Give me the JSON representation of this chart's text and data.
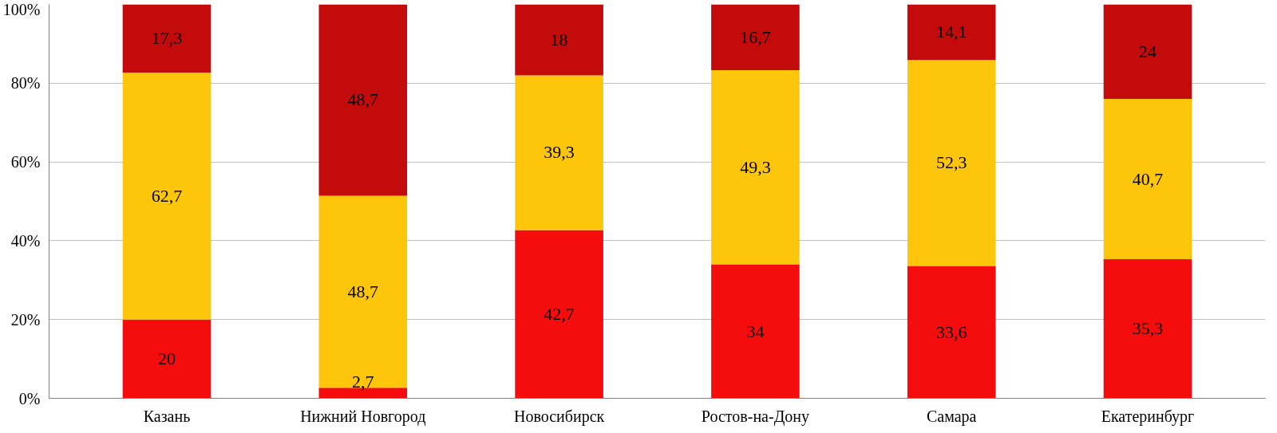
{
  "chart_data": {
    "type": "bar",
    "stacked": true,
    "categories": [
      "Казань",
      "Нижний Новгород",
      "Новосибирск",
      "Ростов-на-Дону",
      "Самара",
      "Екатеринбург"
    ],
    "series": [
      {
        "color": "#f50c0c",
        "values": [
          20,
          2.7,
          42.7,
          34,
          33.6,
          35.3
        ],
        "value_labels": [
          "20",
          "2,7",
          "42,7",
          "34",
          "33,6",
          "35,3"
        ]
      },
      {
        "color": "#fec60a",
        "values": [
          62.7,
          48.7,
          39.3,
          49.3,
          52.3,
          40.7
        ],
        "value_labels": [
          "62,7",
          "48,7",
          "39,3",
          "49,3",
          "52,3",
          "40,7"
        ]
      },
      {
        "color": "#c30b0b",
        "values": [
          17.3,
          48.7,
          18,
          16.7,
          14.1,
          24
        ],
        "value_labels": [
          "17,3",
          "48,7",
          "18",
          "16,7",
          "14,1",
          "24"
        ]
      }
    ],
    "ylim": [
      0,
      100
    ],
    "yticks": [
      {
        "value": 0,
        "label": "0%"
      },
      {
        "value": 20,
        "label": "20%"
      },
      {
        "value": 40,
        "label": "40%"
      },
      {
        "value": 60,
        "label": "60%"
      },
      {
        "value": 80,
        "label": "80%"
      },
      {
        "value": 100,
        "label": "100%"
      }
    ],
    "grid": "y"
  }
}
